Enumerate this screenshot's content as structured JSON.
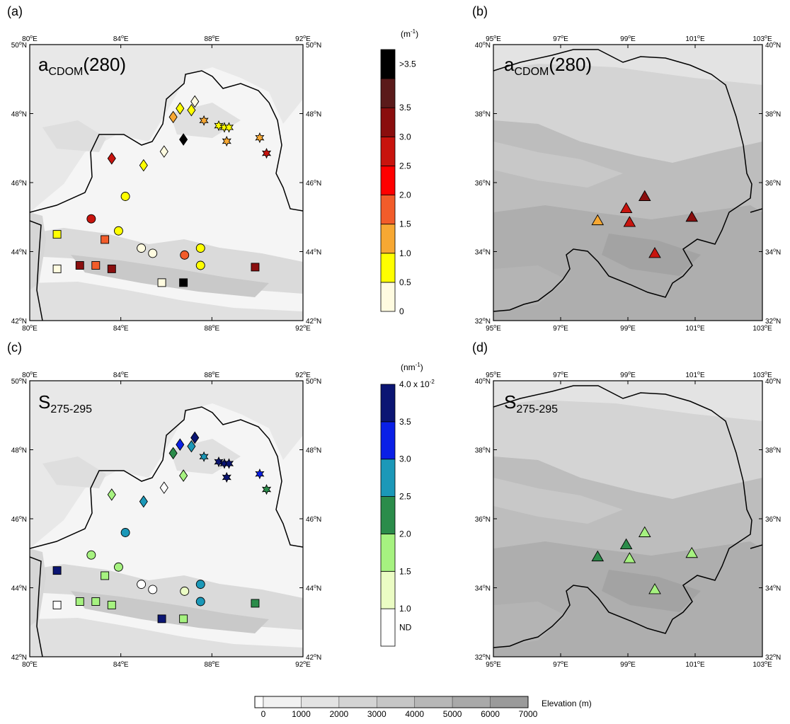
{
  "panels": [
    {
      "label": "(a)",
      "title_main": "a",
      "title_sub": "CDOM",
      "title_tail": "(280)",
      "region": "xinjiang",
      "lon": [
        80,
        92
      ],
      "lat": [
        42,
        50
      ],
      "lon_ticks": [
        "80",
        "84",
        "88",
        "92"
      ],
      "lat_ticks": [
        "42",
        "44",
        "46",
        "48",
        "50"
      ]
    },
    {
      "label": "(b)",
      "title_main": "a",
      "title_sub": "CDOM",
      "title_tail": "(280)",
      "region": "qinghai",
      "lon": [
        95,
        103
      ],
      "lat": [
        32,
        40
      ],
      "lon_ticks": [
        "95",
        "97",
        "99",
        "101",
        "103"
      ],
      "lat_ticks": [
        "32",
        "34",
        "36",
        "38",
        "40"
      ]
    },
    {
      "label": "(c)",
      "title_main": "S",
      "title_sub": "275-295",
      "title_tail": "",
      "region": "xinjiang",
      "lon": [
        80,
        92
      ],
      "lat": [
        42,
        50
      ],
      "lon_ticks": [
        "80",
        "84",
        "88",
        "92"
      ],
      "lat_ticks": [
        "42",
        "44",
        "46",
        "48",
        "50"
      ]
    },
    {
      "label": "(d)",
      "title_main": "S",
      "title_sub": "275-295",
      "title_tail": "",
      "region": "qinghai",
      "lon": [
        95,
        103
      ],
      "lat": [
        32,
        40
      ],
      "lon_ticks": [
        "95",
        "97",
        "99",
        "101",
        "103"
      ],
      "lat_ticks": [
        "32",
        "34",
        "36",
        "38",
        "40"
      ]
    }
  ],
  "lon_suffix": "E",
  "lat_suffix": "N",
  "legend_acdom": {
    "unit_base": "(m",
    "unit_exp": "-1",
    "unit_close": ")",
    "labels": [
      "0",
      "0.5",
      "1.0",
      "1.5",
      "2.0",
      "2.5",
      "3.0",
      "3.5",
      ">3.5"
    ],
    "colors": [
      "#fffbe0",
      "#ffff00",
      "#f7a833",
      "#f25c2a",
      "#ff0000",
      "#c8140e",
      "#8a0e0e",
      "#5a1a1a",
      "#000000"
    ]
  },
  "legend_s": {
    "unit_base": "(nm",
    "unit_exp": "-1",
    "unit_close": ")",
    "labels": [
      "ND",
      "1.0",
      "1.5",
      "2.0",
      "2.5",
      "3.0",
      "3.5",
      "4.0 x 10"
    ],
    "top_exp": "-2",
    "colors": [
      "#ffffff",
      "#ebfcc4",
      "#a6f280",
      "#2b8c4a",
      "#1b98b8",
      "#0a1fe6",
      "#0b1573"
    ]
  },
  "elevation_legend": {
    "label": "Elevation (m)",
    "ticks": [
      "0",
      "1000",
      "2000",
      "3000",
      "4000",
      "5000",
      "6000",
      "7000"
    ],
    "colors": [
      "#ffffff",
      "#f1f1f1",
      "#e3e3e3",
      "#d4d4d4",
      "#c6c6c6",
      "#b7b7b7",
      "#a9a9a9",
      "#9a9a9a"
    ]
  },
  "sites_xinjiang": [
    {
      "lon": 81.2,
      "lat": 44.5,
      "shape": "square",
      "a": 1,
      "s": 6
    },
    {
      "lon": 81.2,
      "lat": 43.5,
      "shape": "square",
      "a": 0,
      "s": 0
    },
    {
      "lon": 82.2,
      "lat": 43.6,
      "shape": "square",
      "a": 6,
      "s": 2
    },
    {
      "lon": 82.9,
      "lat": 43.6,
      "shape": "square",
      "a": 3,
      "s": 2
    },
    {
      "lon": 83.3,
      "lat": 44.35,
      "shape": "square",
      "a": 3,
      "s": 2
    },
    {
      "lon": 83.6,
      "lat": 43.5,
      "shape": "square",
      "a": 6,
      "s": 2
    },
    {
      "lon": 85.8,
      "lat": 43.1,
      "shape": "square",
      "a": 0,
      "s": 6
    },
    {
      "lon": 86.75,
      "lat": 43.1,
      "shape": "square",
      "a": 8,
      "s": 2
    },
    {
      "lon": 89.9,
      "lat": 43.55,
      "shape": "square",
      "a": 6,
      "s": 3
    },
    {
      "lon": 82.7,
      "lat": 44.95,
      "shape": "circle",
      "a": 5,
      "s": 2
    },
    {
      "lon": 84.2,
      "lat": 45.6,
      "shape": "circle",
      "a": 1,
      "s": 4
    },
    {
      "lon": 83.9,
      "lat": 44.6,
      "shape": "circle",
      "a": 1,
      "s": 2
    },
    {
      "lon": 84.9,
      "lat": 44.1,
      "shape": "circle",
      "a": 0,
      "s": 0
    },
    {
      "lon": 85.4,
      "lat": 43.95,
      "shape": "circle",
      "a": 0,
      "s": 0
    },
    {
      "lon": 86.8,
      "lat": 43.9,
      "shape": "circle",
      "a": 3,
      "s": 1
    },
    {
      "lon": 87.5,
      "lat": 44.1,
      "shape": "circle",
      "a": 1,
      "s": 4
    },
    {
      "lon": 87.5,
      "lat": 43.6,
      "shape": "circle",
      "a": 1,
      "s": 4
    },
    {
      "lon": 83.6,
      "lat": 46.7,
      "shape": "diamond",
      "a": 5,
      "s": 2
    },
    {
      "lon": 85.0,
      "lat": 46.5,
      "shape": "diamond",
      "a": 1,
      "s": 4
    },
    {
      "lon": 85.9,
      "lat": 46.9,
      "shape": "diamond",
      "a": 0,
      "s": 0
    },
    {
      "lon": 86.3,
      "lat": 47.9,
      "shape": "diamond",
      "a": 2,
      "s": 3
    },
    {
      "lon": 86.6,
      "lat": 48.15,
      "shape": "diamond",
      "a": 1,
      "s": 5
    },
    {
      "lon": 86.75,
      "lat": 47.25,
      "shape": "diamond",
      "a": 8,
      "s": 2
    },
    {
      "lon": 87.1,
      "lat": 48.1,
      "shape": "diamond",
      "a": 1,
      "s": 4
    },
    {
      "lon": 87.25,
      "lat": 48.35,
      "shape": "diamond",
      "a": 0,
      "s": 6
    },
    {
      "lon": 87.65,
      "lat": 47.8,
      "shape": "star",
      "a": 2,
      "s": 4
    },
    {
      "lon": 88.3,
      "lat": 47.65,
      "shape": "star",
      "a": 1,
      "s": 6
    },
    {
      "lon": 88.55,
      "lat": 47.6,
      "shape": "star",
      "a": 1,
      "s": 6
    },
    {
      "lon": 88.75,
      "lat": 47.6,
      "shape": "star",
      "a": 1,
      "s": 6
    },
    {
      "lon": 88.65,
      "lat": 47.2,
      "shape": "star",
      "a": 2,
      "s": 6
    },
    {
      "lon": 90.1,
      "lat": 47.3,
      "shape": "star",
      "a": 2,
      "s": 5
    },
    {
      "lon": 90.4,
      "lat": 46.85,
      "shape": "star",
      "a": 5,
      "s": 3
    }
  ],
  "sites_qinghai": [
    {
      "lon": 98.1,
      "lat": 34.9,
      "a": 2,
      "s": 3
    },
    {
      "lon": 98.95,
      "lat": 35.25,
      "a": 5,
      "s": 3
    },
    {
      "lon": 99.05,
      "lat": 34.85,
      "a": 5,
      "s": 2
    },
    {
      "lon": 99.5,
      "lat": 35.6,
      "a": 6,
      "s": 2
    },
    {
      "lon": 99.8,
      "lat": 33.95,
      "a": 5,
      "s": 2
    },
    {
      "lon": 100.9,
      "lat": 35.0,
      "a": 6,
      "s": 2
    }
  ]
}
